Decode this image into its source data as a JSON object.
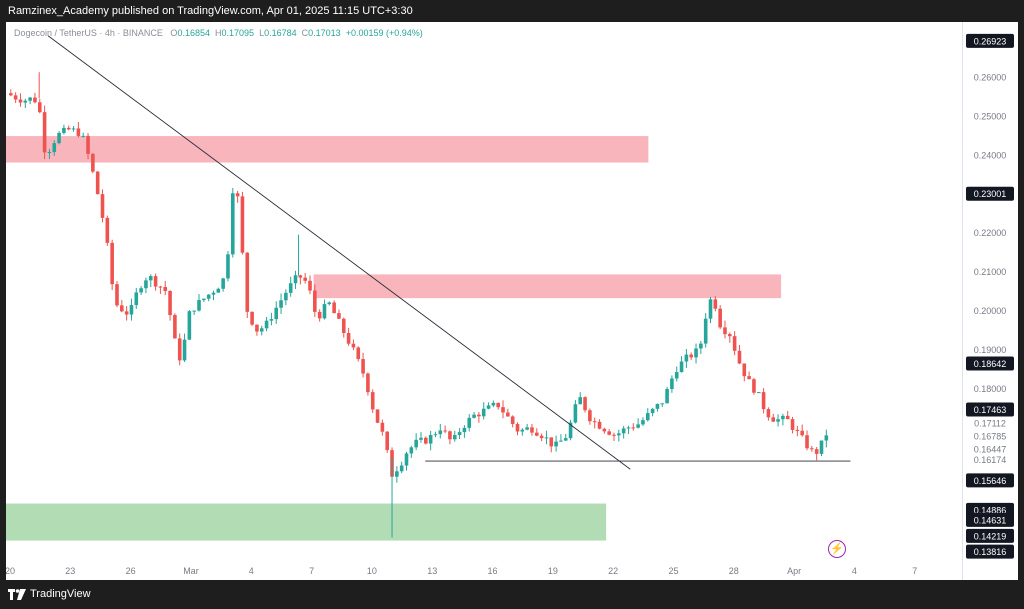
{
  "header": {
    "publisher_line": "Ramzinex_Academy published on TradingView.com, Apr 01, 2025 11:15 UTC+3:30"
  },
  "legend": {
    "symbol": "Dogecoin / TetherUS · 4h · BINANCE",
    "o_label": "O",
    "o": "0.16854",
    "h_label": "H",
    "h": "0.17095",
    "l_label": "L",
    "l": "0.16784",
    "c_label": "C",
    "c": "0.17013",
    "change": "+0.00159 (+0.94%)"
  },
  "footer": {
    "brand": "TradingView"
  },
  "colors": {
    "up": "#26a69a",
    "down": "#ef5350",
    "resistance_zone": "#f7a8b0",
    "support_zone": "#a5d6a7"
  },
  "chart_data": {
    "type": "candlestick",
    "y_ticks": [
      "0.26000",
      "0.25000",
      "0.24000",
      "0.22000",
      "0.21000",
      "0.20000",
      "0.19000",
      "0.18000",
      "0.17112",
      "0.16785",
      "0.16447",
      "0.16174",
      "0.15646",
      "0.14886",
      "0.14631",
      "0.14219",
      "0.13816"
    ],
    "highlighted_price_labels": [
      "0.26923",
      "0.23001",
      "0.18642",
      "0.17463",
      "0.15646",
      "0.14886",
      "0.14631",
      "0.14219",
      "0.13816"
    ],
    "x_ticks": [
      "20",
      "23",
      "26",
      "Mar",
      "4",
      "7",
      "10",
      "13",
      "16",
      "19",
      "22",
      "25",
      "28",
      "Apr",
      "4",
      "7"
    ],
    "ylim": [
      0.1355,
      0.2715
    ],
    "zones": [
      {
        "name": "resistance-zone-upper",
        "y_low": 0.238,
        "y_high": 0.2448,
        "x_start": 0,
        "x_end": 21.3
      },
      {
        "name": "resistance-zone-lower",
        "y_low": 0.2032,
        "y_high": 0.2093,
        "x_start": 10.2,
        "x_end": 25.7
      },
      {
        "name": "support-zone",
        "y_low": 0.141,
        "y_high": 0.1505,
        "x_start": 0,
        "x_end": 19.9
      }
    ],
    "lines": [
      {
        "name": "downtrend-line",
        "x1": 1.4,
        "y1": 0.2705,
        "x2": 20.7,
        "y2": 0.1593
      },
      {
        "name": "support-line",
        "x1": 13.9,
        "y1": 0.1614,
        "x2": 28.0,
        "y2": 0.1614
      }
    ],
    "close_path": [
      [
        0,
        0.2558
      ],
      [
        0.3,
        0.2548
      ],
      [
        0.6,
        0.254
      ],
      [
        0.9,
        0.2545
      ],
      [
        1.1,
        0.253
      ],
      [
        1.2,
        0.242
      ],
      [
        1.4,
        0.241
      ],
      [
        1.7,
        0.245
      ],
      [
        2.1,
        0.2465
      ],
      [
        2.5,
        0.2455
      ],
      [
        2.8,
        0.238
      ],
      [
        3.1,
        0.228
      ],
      [
        3.3,
        0.22
      ],
      [
        3.6,
        0.202
      ],
      [
        3.9,
        0.2
      ],
      [
        4.1,
        0.199
      ],
      [
        4.4,
        0.206
      ],
      [
        4.7,
        0.209
      ],
      [
        5.0,
        0.207
      ],
      [
        5.3,
        0.205
      ],
      [
        5.6,
        0.192
      ],
      [
        5.8,
        0.187
      ],
      [
        6.1,
        0.2
      ],
      [
        6.4,
        0.202
      ],
      [
        6.7,
        0.204
      ],
      [
        7.0,
        0.206
      ],
      [
        7.3,
        0.209
      ],
      [
        7.5,
        0.23
      ],
      [
        7.6,
        0.236
      ],
      [
        7.8,
        0.218
      ],
      [
        8.0,
        0.2
      ],
      [
        8.3,
        0.195
      ],
      [
        8.6,
        0.196
      ],
      [
        8.9,
        0.2
      ],
      [
        9.3,
        0.205
      ],
      [
        9.7,
        0.209
      ],
      [
        10.0,
        0.207
      ],
      [
        10.3,
        0.198
      ],
      [
        10.7,
        0.202
      ],
      [
        11.1,
        0.196
      ],
      [
        11.5,
        0.19
      ],
      [
        11.9,
        0.183
      ],
      [
        12.2,
        0.174
      ],
      [
        12.5,
        0.168
      ],
      [
        12.8,
        0.158
      ],
      [
        13.1,
        0.161
      ],
      [
        13.3,
        0.164
      ],
      [
        13.6,
        0.166
      ],
      [
        14.0,
        0.167
      ],
      [
        14.4,
        0.17
      ],
      [
        14.8,
        0.166
      ],
      [
        15.1,
        0.17
      ],
      [
        15.5,
        0.173
      ],
      [
        15.9,
        0.1745
      ],
      [
        16.3,
        0.176
      ],
      [
        16.7,
        0.172
      ],
      [
        17.0,
        0.169
      ],
      [
        17.4,
        0.17
      ],
      [
        17.8,
        0.168
      ],
      [
        18.2,
        0.165
      ],
      [
        18.6,
        0.168
      ],
      [
        19.0,
        0.178
      ],
      [
        19.4,
        0.172
      ],
      [
        19.8,
        0.17
      ],
      [
        20.2,
        0.168
      ],
      [
        20.6,
        0.17
      ],
      [
        21.0,
        0.171
      ],
      [
        21.4,
        0.174
      ],
      [
        21.8,
        0.177
      ],
      [
        22.2,
        0.185
      ],
      [
        22.6,
        0.188
      ],
      [
        23.0,
        0.19
      ],
      [
        23.3,
        0.203
      ],
      [
        23.5,
        0.202
      ],
      [
        23.7,
        0.196
      ],
      [
        24.0,
        0.194
      ],
      [
        24.3,
        0.187
      ],
      [
        24.6,
        0.182
      ],
      [
        24.9,
        0.179
      ],
      [
        25.2,
        0.174
      ],
      [
        25.5,
        0.172
      ],
      [
        25.9,
        0.172
      ],
      [
        26.2,
        0.169
      ],
      [
        26.5,
        0.166
      ],
      [
        26.8,
        0.163
      ],
      [
        27.0,
        0.165
      ],
      [
        27.3,
        0.1701
      ]
    ]
  }
}
